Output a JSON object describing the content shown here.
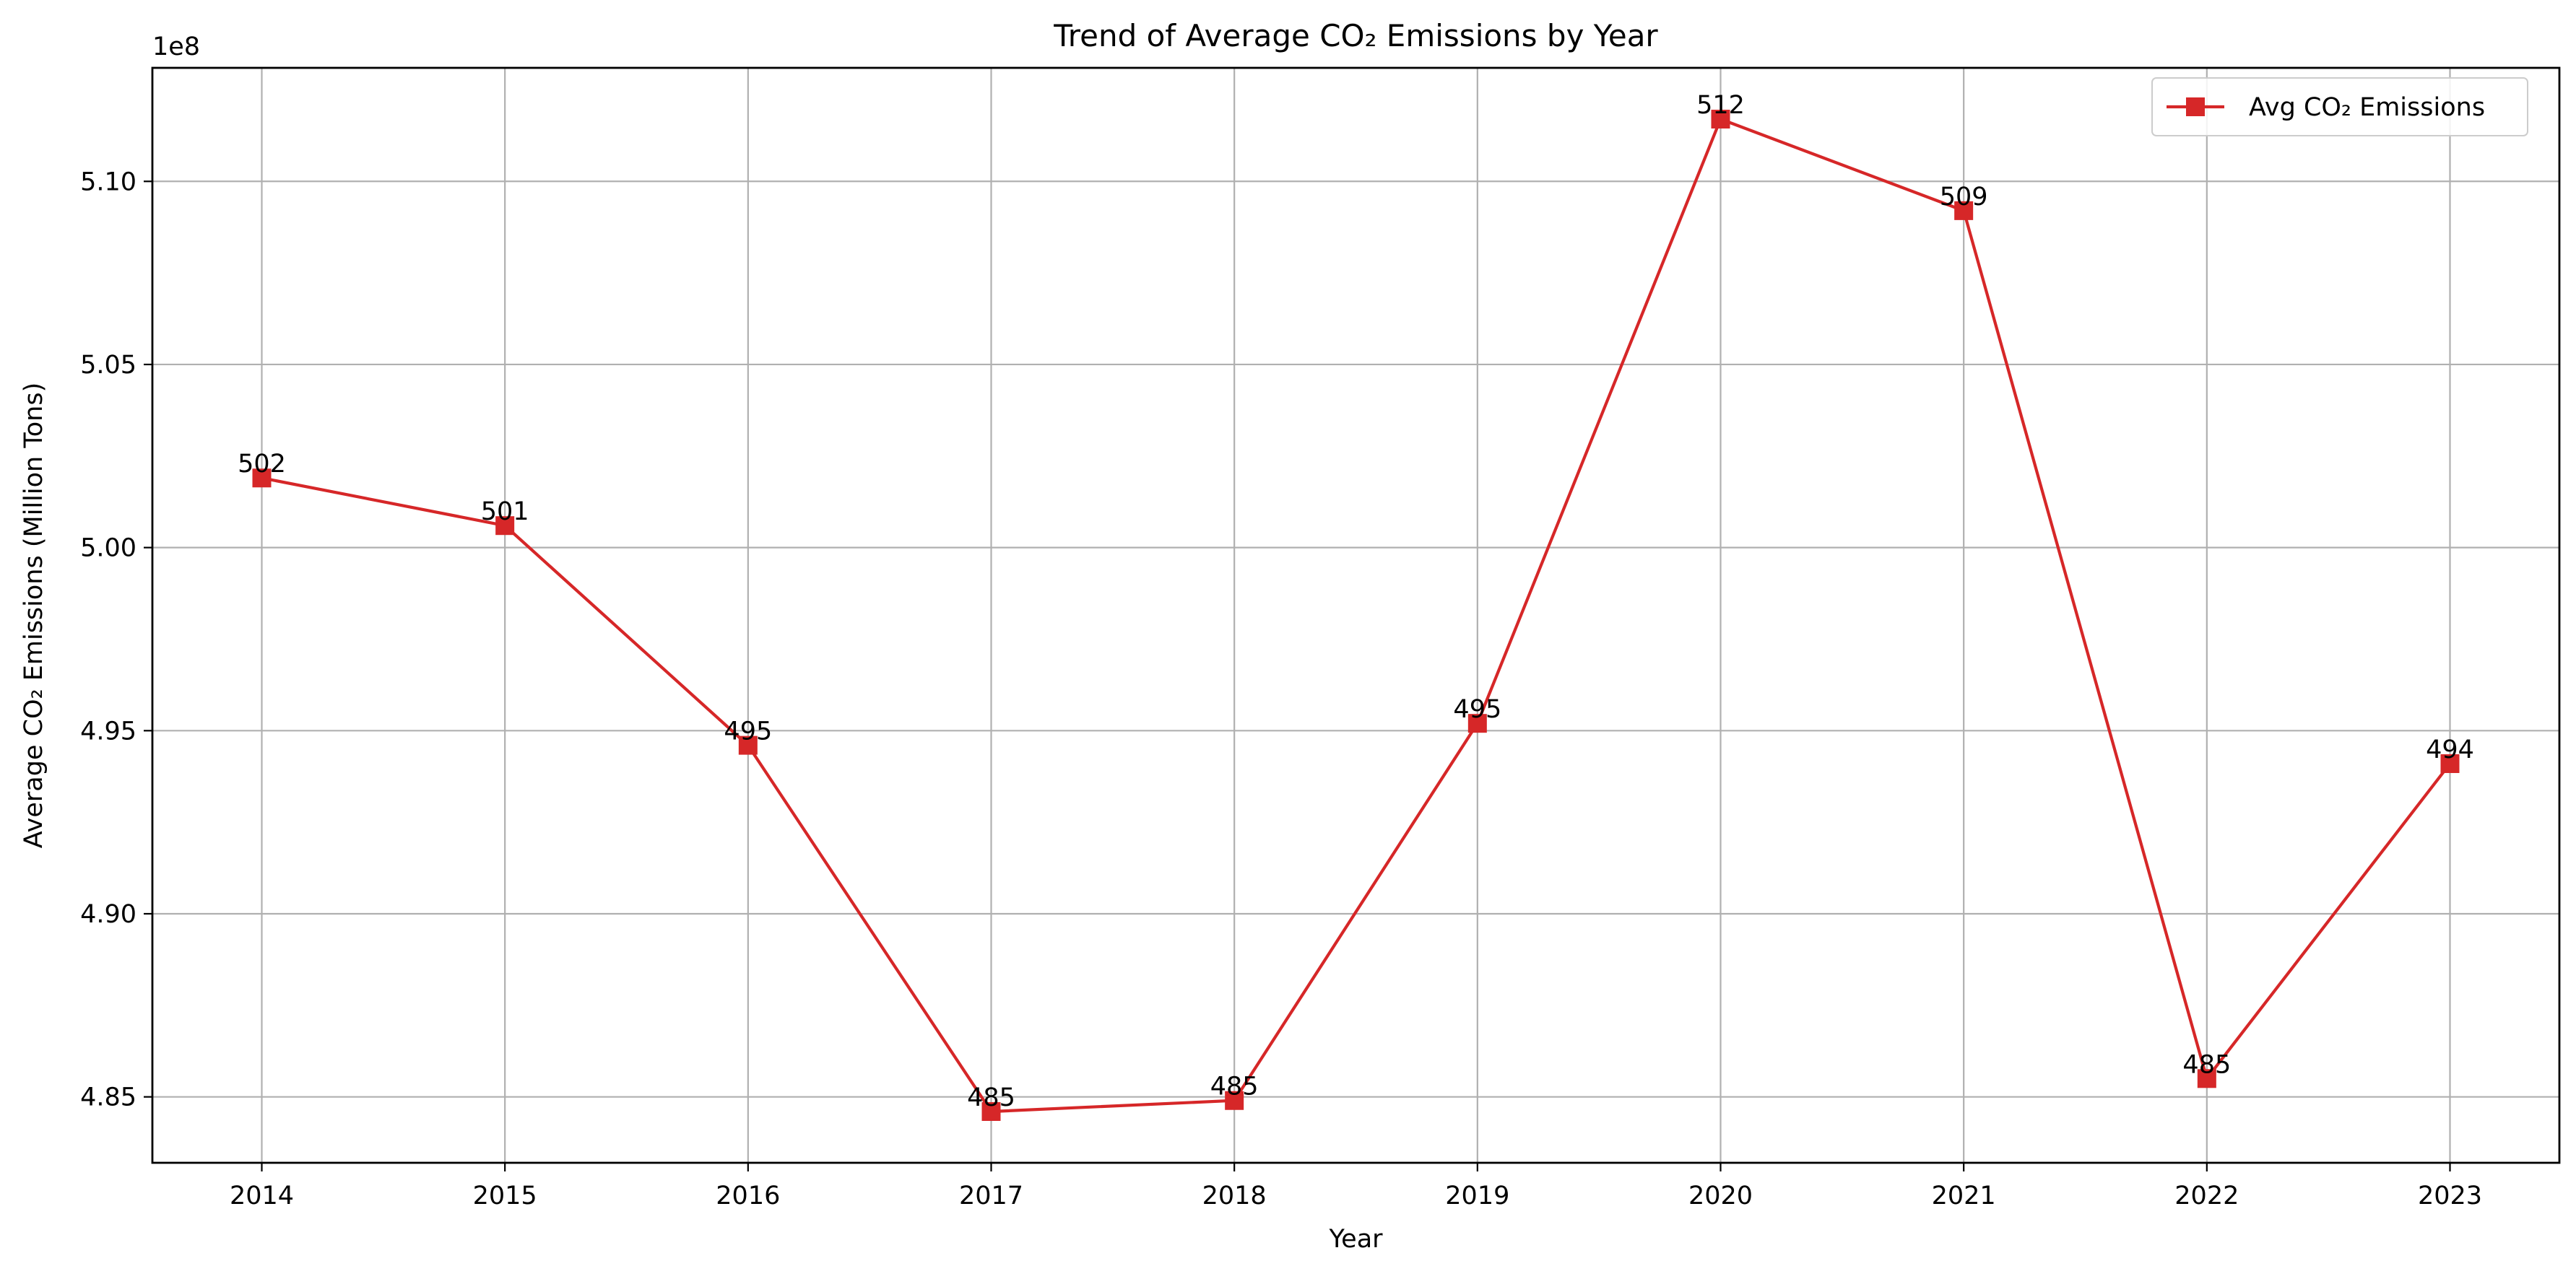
{
  "chart_data": {
    "type": "line",
    "title": "Trend of Average CO₂ Emissions by Year",
    "xlabel": "Year",
    "ylabel": "Average CO₂ Emissions (Million Tons)",
    "y_offset_label": "1e8",
    "x": [
      2014,
      2015,
      2016,
      2017,
      2018,
      2019,
      2020,
      2021,
      2022,
      2023
    ],
    "x_tick_labels": [
      "2014",
      "2015",
      "2016",
      "2017",
      "2018",
      "2019",
      "2020",
      "2021",
      "2022",
      "2023"
    ],
    "y_ticks": [
      4.85,
      4.9,
      4.95,
      5.0,
      5.05,
      5.1
    ],
    "y_tick_labels": [
      "4.85",
      "4.90",
      "4.95",
      "5.00",
      "5.05",
      "5.10"
    ],
    "ylim": [
      4.832,
      5.131
    ],
    "xlim": [
      2013.55,
      2023.45
    ],
    "grid": true,
    "legend_position": "top-right",
    "series": [
      {
        "name": "Avg CO₂ Emissions",
        "color": "#d62728",
        "marker": "square",
        "values": [
          5.019,
          5.006,
          4.946,
          4.846,
          4.849,
          4.952,
          5.117,
          5.092,
          4.855,
          4.941
        ],
        "data_labels": [
          "502",
          "501",
          "495",
          "485",
          "485",
          "495",
          "512",
          "509",
          "485",
          "494"
        ]
      }
    ]
  }
}
